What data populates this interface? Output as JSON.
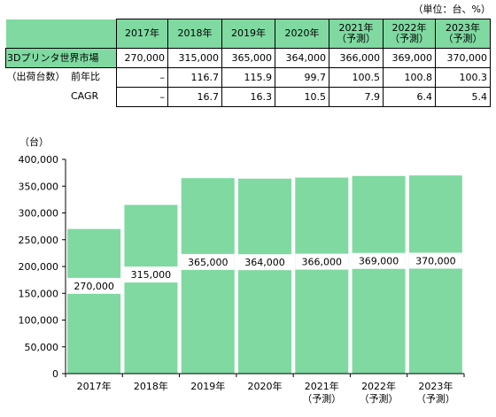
{
  "unit_note": "（単位：台、%）",
  "table": {
    "years": [
      "2017年",
      "2018年",
      "2019年",
      "2020年",
      "2021年\n（予測）",
      "2022年\n（予測）",
      "2023年\n（予測）"
    ],
    "rows": [
      {
        "label": "3Dプリンタ世界市場",
        "values": [
          "270,000",
          "315,000",
          "365,000",
          "364,000",
          "366,000",
          "369,000",
          "370,000"
        ]
      },
      {
        "group": "（出荷台数）",
        "label": "前年比",
        "values": [
          "–",
          "116.7",
          "115.9",
          "99.7",
          "100.5",
          "100.8",
          "100.3"
        ]
      },
      {
        "group": "",
        "label": "CAGR",
        "values": [
          "–",
          "16.7",
          "16.3",
          "10.5",
          "7.9",
          "6.4",
          "5.4"
        ]
      }
    ]
  },
  "chart_data": {
    "type": "bar",
    "ylabel": "（台）",
    "categories": [
      "2017年",
      "2018年",
      "2019年",
      "2020年",
      "2021年\n（予測）",
      "2022年\n（予測）",
      "2023年\n（予測）"
    ],
    "values": [
      270000,
      315000,
      365000,
      364000,
      366000,
      369000,
      370000
    ],
    "data_labels": [
      "270,000",
      "315,000",
      "365,000",
      "364,000",
      "366,000",
      "369,000",
      "370,000"
    ],
    "ylim": [
      0,
      400000
    ],
    "yticks": [
      "0",
      "50,000",
      "100,000",
      "150,000",
      "200,000",
      "250,000",
      "300,000",
      "350,000",
      "400,000"
    ],
    "bar_color": "#7fd9a1",
    "grid": false,
    "legend": "none"
  }
}
